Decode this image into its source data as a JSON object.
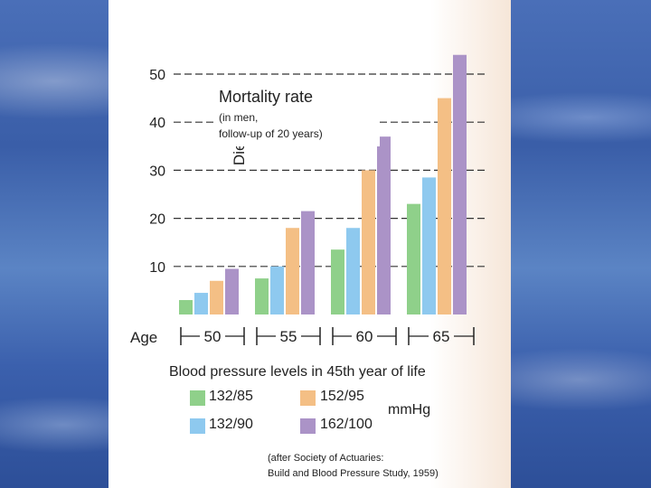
{
  "chart_data": {
    "type": "bar",
    "title": "Mortality rate",
    "subtitle_lines": [
      "(in men,",
      "follow-up of 20 years)"
    ],
    "ylabel": "Died (%)",
    "xlabel": "Blood pressure levels in 45th year of life",
    "age_label": "Age",
    "categories": [
      "50",
      "55",
      "60",
      "65"
    ],
    "yticks": [
      10,
      20,
      30,
      40,
      50
    ],
    "ylim": [
      0,
      55
    ],
    "series": [
      {
        "name": "132/85",
        "color": "#8fd08a",
        "values": [
          3,
          7.5,
          13.5,
          23
        ]
      },
      {
        "name": "132/90",
        "color": "#8ec9ef",
        "values": [
          4.5,
          10,
          18,
          28.5
        ]
      },
      {
        "name": "152/95",
        "color": "#f4bf85",
        "values": [
          7,
          18,
          30,
          45
        ]
      },
      {
        "name": "162/100",
        "color": "#ab93c7",
        "values": [
          9.5,
          21.5,
          37,
          54
        ]
      }
    ],
    "legend_unit": "mmHg",
    "source_lines": [
      "(after Society of Actuaries:",
      "Build and Blood Pressure Study, 1959)"
    ]
  }
}
